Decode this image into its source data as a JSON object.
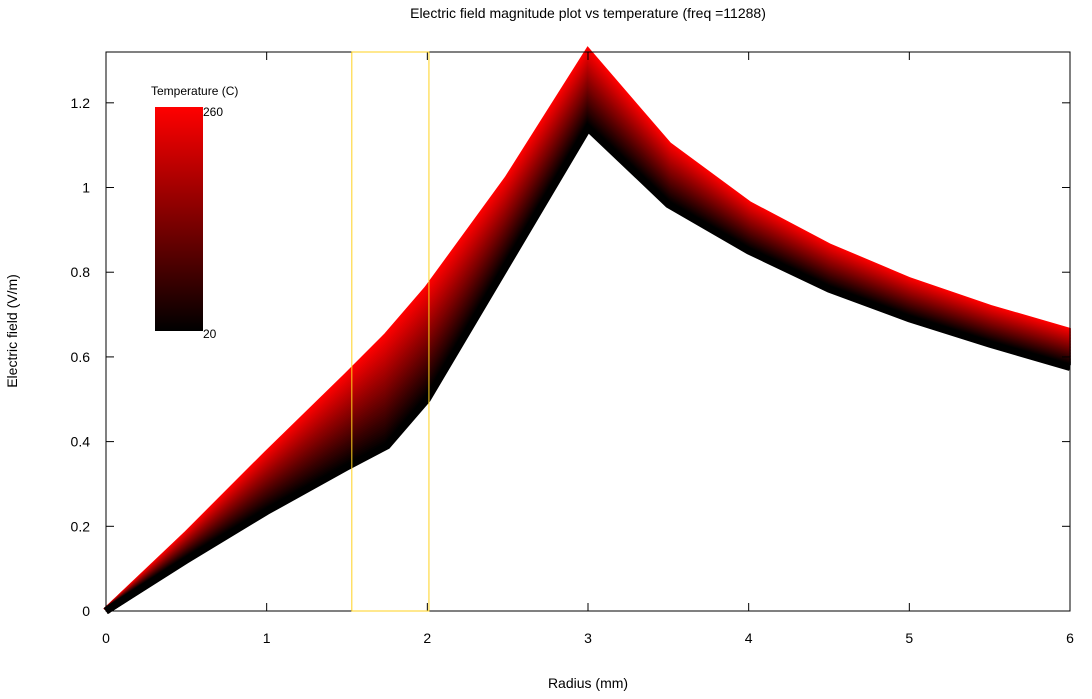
{
  "chart_data": {
    "type": "area",
    "title": "Electric field magnitude plot vs temperature (freq =11288)",
    "xlabel": "Radius (mm)",
    "ylabel": "Electric field (V/m)",
    "xlim": [
      0,
      6
    ],
    "ylim": [
      0,
      1.32
    ],
    "xticks": [
      "0",
      "1",
      "2",
      "3",
      "4",
      "5",
      "6"
    ],
    "yticks": [
      "0",
      "0.2",
      "0.4",
      "0.6",
      "0.8",
      "1",
      "1.2"
    ],
    "grid": false,
    "colorbar": {
      "title": "Temperature (C)",
      "max_label": "260",
      "min_label": "20",
      "max_color": "#ff0000",
      "min_color": "#000000",
      "placement": "top-left"
    },
    "highlight_region": {
      "x_range": [
        1.53,
        2.01
      ],
      "color": "#ffd21e"
    },
    "series": [
      {
        "label": "20",
        "color": "#000000",
        "points": [
          [
            0,
            0
          ],
          [
            0.5,
            0.12
          ],
          [
            1,
            0.235
          ],
          [
            1.5,
            0.34
          ],
          [
            1.75,
            0.39
          ],
          [
            2,
            0.5
          ],
          [
            2.5,
            0.82
          ],
          [
            3,
            1.14
          ],
          [
            3.5,
            0.96
          ],
          [
            4,
            0.85
          ],
          [
            4.5,
            0.76
          ],
          [
            5,
            0.69
          ],
          [
            5.5,
            0.63
          ],
          [
            6,
            0.575
          ]
        ]
      },
      {
        "label": "260",
        "color": "#ff0000",
        "points": [
          [
            0,
            0
          ],
          [
            0.5,
            0.18
          ],
          [
            1,
            0.37
          ],
          [
            1.5,
            0.555
          ],
          [
            1.75,
            0.65
          ],
          [
            2,
            0.76
          ],
          [
            2.5,
            1.02
          ],
          [
            3,
            1.32
          ],
          [
            3.5,
            1.1
          ],
          [
            4,
            0.96
          ],
          [
            4.5,
            0.86
          ],
          [
            5,
            0.78
          ],
          [
            5.5,
            0.715
          ],
          [
            6,
            0.66
          ]
        ]
      }
    ]
  }
}
